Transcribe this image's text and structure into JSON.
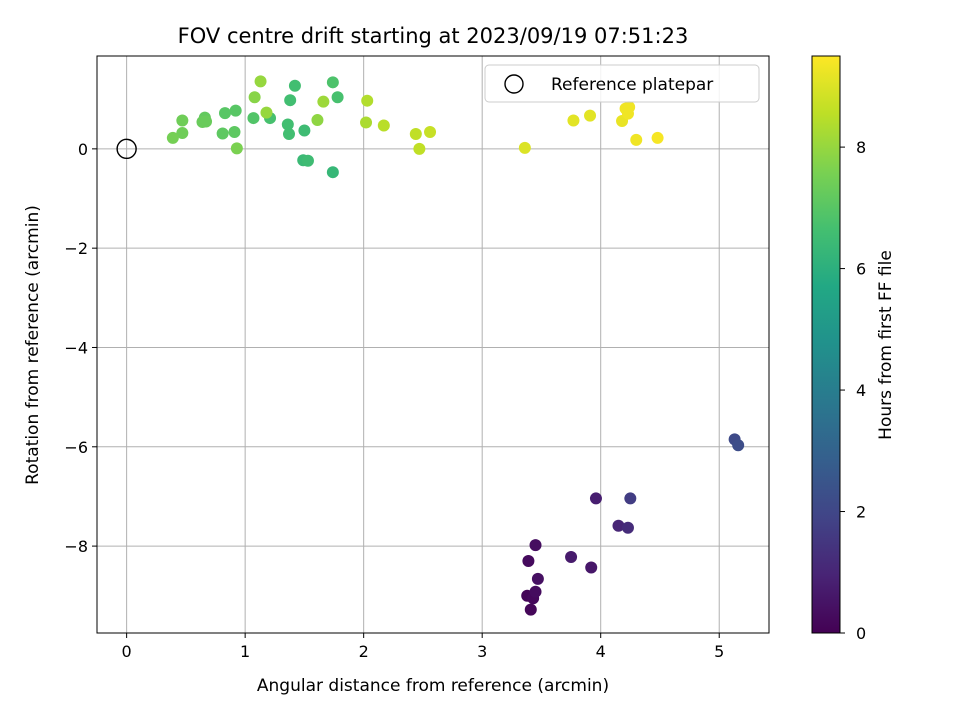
{
  "chart_data": {
    "type": "scatter",
    "title": "FOV centre drift starting at 2023/09/19 07:51:23",
    "xlabel": "Angular distance from reference (arcmin)",
    "ylabel": "Rotation from reference (arcmin)",
    "xlim": [
      -0.25,
      5.42
    ],
    "ylim": [
      -9.75,
      1.87
    ],
    "xticks": [
      0,
      1,
      2,
      3,
      4,
      5
    ],
    "yticks": [
      -8,
      -6,
      -4,
      -2,
      0
    ],
    "grid": true,
    "legend": {
      "placement": "top-right",
      "entries": [
        "Reference platepar"
      ]
    },
    "reference_point": {
      "x": 0,
      "y": 0,
      "label": "Reference platepar"
    },
    "colorbar": {
      "label": "Hours from first FF file",
      "colormap": "viridis",
      "range": [
        0,
        9.5
      ],
      "ticks": [
        0,
        2,
        4,
        6,
        8
      ]
    },
    "points": [
      {
        "x": 3.38,
        "y": -9.0,
        "c": 0.1
      },
      {
        "x": 3.41,
        "y": -9.28,
        "c": 0.15
      },
      {
        "x": 3.43,
        "y": -9.05,
        "c": 0.2
      },
      {
        "x": 3.45,
        "y": -8.92,
        "c": 0.3
      },
      {
        "x": 3.47,
        "y": -8.66,
        "c": 0.4
      },
      {
        "x": 3.39,
        "y": -8.3,
        "c": 0.25
      },
      {
        "x": 3.45,
        "y": -7.98,
        "c": 0.35
      },
      {
        "x": 3.75,
        "y": -8.22,
        "c": 0.7
      },
      {
        "x": 3.92,
        "y": -8.43,
        "c": 0.6
      },
      {
        "x": 3.96,
        "y": -7.04,
        "c": 0.8
      },
      {
        "x": 4.15,
        "y": -7.59,
        "c": 1.0
      },
      {
        "x": 4.23,
        "y": -7.63,
        "c": 1.2
      },
      {
        "x": 4.25,
        "y": -7.04,
        "c": 1.7
      },
      {
        "x": 5.13,
        "y": -5.85,
        "c": 2.1
      },
      {
        "x": 5.16,
        "y": -5.97,
        "c": 2.2
      },
      {
        "x": 1.74,
        "y": -0.47,
        "c": 6.3
      },
      {
        "x": 1.49,
        "y": -0.23,
        "c": 6.4
      },
      {
        "x": 1.53,
        "y": -0.24,
        "c": 6.5
      },
      {
        "x": 1.5,
        "y": 0.37,
        "c": 6.5
      },
      {
        "x": 1.37,
        "y": 0.3,
        "c": 6.6
      },
      {
        "x": 1.36,
        "y": 0.49,
        "c": 6.6
      },
      {
        "x": 1.21,
        "y": 0.62,
        "c": 6.7
      },
      {
        "x": 1.38,
        "y": 0.98,
        "c": 6.6
      },
      {
        "x": 1.42,
        "y": 1.27,
        "c": 6.6
      },
      {
        "x": 1.74,
        "y": 1.34,
        "c": 6.8
      },
      {
        "x": 1.78,
        "y": 1.04,
        "c": 6.7
      },
      {
        "x": 1.07,
        "y": 0.62,
        "c": 6.9
      },
      {
        "x": 0.92,
        "y": 0.77,
        "c": 7.0
      },
      {
        "x": 0.83,
        "y": 0.72,
        "c": 7.0
      },
      {
        "x": 0.81,
        "y": 0.31,
        "c": 7.1
      },
      {
        "x": 0.91,
        "y": 0.34,
        "c": 7.1
      },
      {
        "x": 0.66,
        "y": 0.63,
        "c": 7.2
      },
      {
        "x": 0.64,
        "y": 0.54,
        "c": 7.3
      },
      {
        "x": 0.67,
        "y": 0.55,
        "c": 7.3
      },
      {
        "x": 0.47,
        "y": 0.57,
        "c": 7.4
      },
      {
        "x": 0.47,
        "y": 0.32,
        "c": 7.4
      },
      {
        "x": 0.39,
        "y": 0.22,
        "c": 7.5
      },
      {
        "x": 0.93,
        "y": 0.01,
        "c": 7.6
      },
      {
        "x": 1.08,
        "y": 1.04,
        "c": 7.8
      },
      {
        "x": 1.13,
        "y": 1.36,
        "c": 8.0
      },
      {
        "x": 1.18,
        "y": 0.73,
        "c": 8.0
      },
      {
        "x": 1.61,
        "y": 0.58,
        "c": 7.9
      },
      {
        "x": 1.66,
        "y": 0.95,
        "c": 8.1
      },
      {
        "x": 2.02,
        "y": 0.53,
        "c": 8.3
      },
      {
        "x": 2.03,
        "y": 0.97,
        "c": 8.4
      },
      {
        "x": 2.17,
        "y": 0.47,
        "c": 8.5
      },
      {
        "x": 2.44,
        "y": 0.3,
        "c": 8.6
      },
      {
        "x": 2.47,
        "y": 0.0,
        "c": 8.6
      },
      {
        "x": 2.56,
        "y": 0.34,
        "c": 8.7
      },
      {
        "x": 3.36,
        "y": 0.02,
        "c": 9.0
      },
      {
        "x": 3.77,
        "y": 0.57,
        "c": 9.1
      },
      {
        "x": 3.91,
        "y": 0.67,
        "c": 9.1
      },
      {
        "x": 4.18,
        "y": 0.56,
        "c": 9.2
      },
      {
        "x": 4.21,
        "y": 0.81,
        "c": 9.3
      },
      {
        "x": 4.24,
        "y": 0.84,
        "c": 9.3
      },
      {
        "x": 4.23,
        "y": 0.71,
        "c": 9.3
      },
      {
        "x": 4.3,
        "y": 0.18,
        "c": 9.3
      },
      {
        "x": 4.48,
        "y": 0.22,
        "c": 9.4
      }
    ]
  }
}
